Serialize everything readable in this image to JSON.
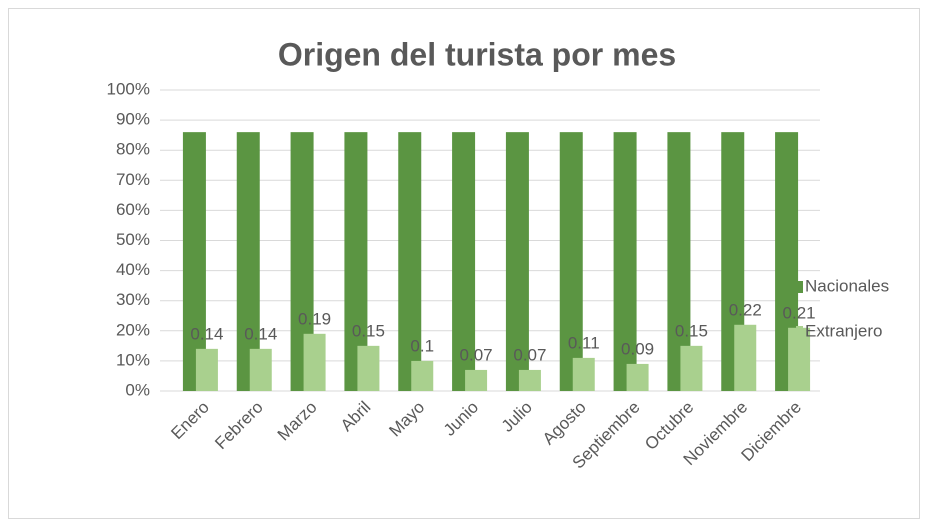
{
  "chart_data": {
    "type": "bar",
    "title": "Origen del turista por mes",
    "categories": [
      "Enero",
      "Febrero",
      "Marzo",
      "Abril",
      "Mayo",
      "Junio",
      "Julio",
      "Agosto",
      "Septiembre",
      "Octubre",
      "Noviembre",
      "Diciembre"
    ],
    "series": [
      {
        "name": "Nacionales",
        "color": "#5b9542",
        "values": [
          86,
          86,
          86,
          86,
          86,
          86,
          86,
          86,
          86,
          86,
          86,
          86
        ]
      },
      {
        "name": "Extranjero",
        "color": "#a9d08e",
        "values": [
          14,
          14,
          19,
          15,
          10,
          7,
          7,
          11,
          9,
          15,
          22,
          21
        ],
        "value_labels": [
          "0.14",
          "0.14",
          "0.19",
          "0.15",
          "0.1",
          "0.07",
          "0.07",
          "0.11",
          "0.09",
          "0.15",
          "0.22",
          "0.21"
        ]
      }
    ],
    "ylim": [
      0,
      100
    ],
    "yticks": [
      {
        "value": 0,
        "label": "0%"
      },
      {
        "value": 10,
        "label": "10%"
      },
      {
        "value": 20,
        "label": "20%"
      },
      {
        "value": 30,
        "label": "30%"
      },
      {
        "value": 40,
        "label": "40%"
      },
      {
        "value": 50,
        "label": "50%"
      },
      {
        "value": 60,
        "label": "60%"
      },
      {
        "value": 70,
        "label": "70%"
      },
      {
        "value": 80,
        "label": "80%"
      },
      {
        "value": 90,
        "label": "90%"
      },
      {
        "value": 100,
        "label": "100%"
      }
    ],
    "grid": true,
    "legend": "right"
  }
}
